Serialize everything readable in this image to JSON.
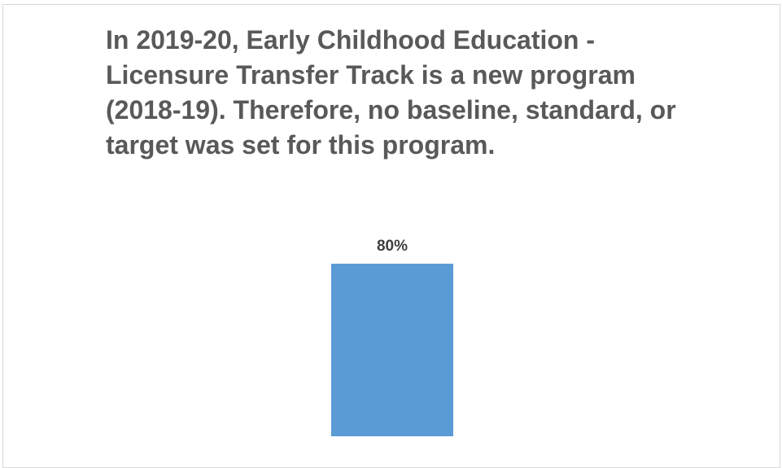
{
  "chart_data": {
    "type": "bar",
    "title": "In 2019-20, Early Childhood Education - Licensure Transfer Track is a new program (2018-19). Therefore, no baseline, standard, or target was set for this program.",
    "categories": [
      null
    ],
    "values": [
      80
    ],
    "value_labels": [
      "80%"
    ],
    "color": "#5b9bd5"
  }
}
